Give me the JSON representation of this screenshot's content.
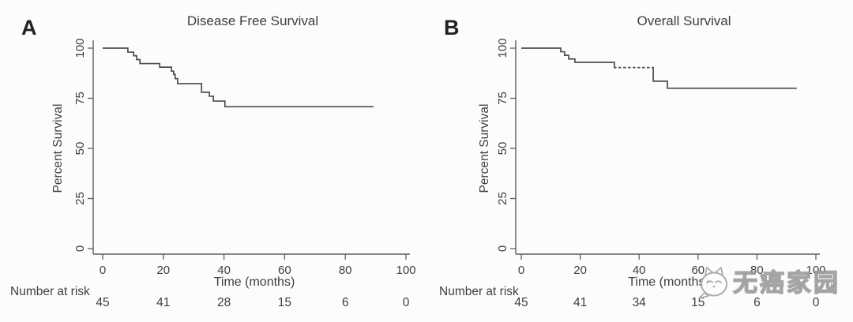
{
  "figure": {
    "panel_letters": [
      "A",
      "B"
    ],
    "background_color": "#fcfcfc",
    "curve_color": "#4c4c4c",
    "axis_color": "#5f5f5f",
    "text_color": "#3c3c3c"
  },
  "watermark": {
    "text": "无癌家园",
    "logo": "cat-bubble-logo",
    "color": "#9b9b9b"
  },
  "chart_data": [
    {
      "type": "line",
      "subtype": "kaplan_meier_step",
      "title": "Disease Free Survival",
      "xlabel": "Time (months)",
      "ylabel": "Percent Survival",
      "xlim": [
        0,
        100
      ],
      "ylim": [
        0,
        100
      ],
      "x_ticks": [
        0,
        20,
        40,
        60,
        80,
        100
      ],
      "y_ticks": [
        100,
        75,
        50,
        25,
        0
      ],
      "grid": false,
      "legend": false,
      "series": [
        {
          "name": "Disease Free Survival",
          "start": [
            0,
            100
          ],
          "drops": [
            [
              8.3,
              98.0
            ],
            [
              10.2,
              96.2
            ],
            [
              11.2,
              94.3
            ],
            [
              12.3,
              92.3
            ],
            [
              18.8,
              90.5
            ],
            [
              22.7,
              88.5
            ],
            [
              23.4,
              86.9
            ],
            [
              23.9,
              84.8
            ],
            [
              24.7,
              82.3
            ],
            [
              32.6,
              78.0
            ],
            [
              35.2,
              76.0
            ],
            [
              36.5,
              73.6
            ],
            [
              40.3,
              70.8
            ]
          ],
          "end_time": 89.3
        }
      ],
      "number_at_risk": {
        "label": "Number at risk",
        "times": [
          0,
          20,
          40,
          60,
          80,
          100
        ],
        "counts": [
          45,
          41,
          28,
          15,
          6,
          0
        ]
      }
    },
    {
      "type": "line",
      "subtype": "kaplan_meier_step",
      "title": "Overall Survival",
      "xlabel": "Time (months)",
      "ylabel": "Percent Survival",
      "xlim": [
        0,
        100
      ],
      "ylim": [
        0,
        100
      ],
      "x_ticks": [
        0,
        20,
        40,
        60,
        80,
        100
      ],
      "y_ticks": [
        100,
        75,
        50,
        25,
        0
      ],
      "grid": false,
      "legend": false,
      "series": [
        {
          "name": "Overall Survival",
          "start": [
            0,
            100
          ],
          "drops": [
            [
              13.4,
              98.2
            ],
            [
              14.7,
              96.4
            ],
            [
              16.1,
              94.6
            ],
            [
              18.2,
              92.9
            ],
            [
              31.6,
              90.3
            ],
            [
              44.8,
              83.5
            ],
            [
              49.6,
              80.0
            ]
          ],
          "end_time": 93.5,
          "censor_span": {
            "from": 32.3,
            "to": 44.3,
            "at": 90.3
          }
        }
      ],
      "number_at_risk": {
        "label": "Number at risk",
        "times": [
          0,
          20,
          40,
          60,
          80,
          100
        ],
        "counts": [
          45,
          41,
          34,
          15,
          6,
          0
        ]
      }
    }
  ]
}
